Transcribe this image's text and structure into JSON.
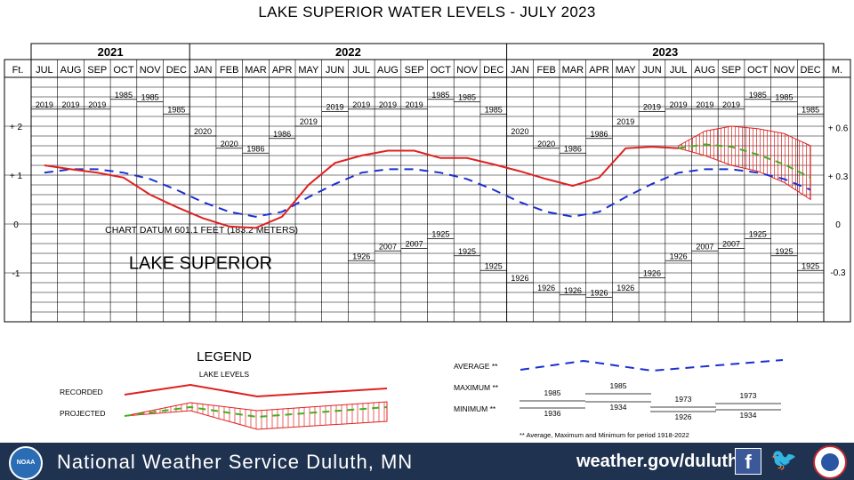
{
  "page": {
    "title": "LAKE SUPERIOR WATER LEVELS - JULY 2023"
  },
  "footer": {
    "org": "National Weather Service Duluth, MN",
    "url": "weather.gov/duluth",
    "noaa_logo_text": "NOAA",
    "facebook_icon": "facebook-icon",
    "twitter_icon": "twitter-icon",
    "background": "#1f3250"
  },
  "colors": {
    "recorded": "#e02020",
    "average": "#1a2fd0",
    "projected": "#40b020",
    "hatch": "#e02020",
    "grid": "#000000"
  },
  "chart_data": {
    "type": "line",
    "title": "LAKE SUPERIOR WATER LEVELS - JULY 2023",
    "years": [
      {
        "label": "2021",
        "start": 0,
        "end": 6
      },
      {
        "label": "2022",
        "start": 6,
        "end": 18
      },
      {
        "label": "2023",
        "start": 18,
        "end": 30
      }
    ],
    "months": [
      "JUL",
      "AUG",
      "SEP",
      "OCT",
      "NOV",
      "DEC",
      "JAN",
      "FEB",
      "MAR",
      "APR",
      "MAY",
      "JUN",
      "JUL",
      "AUG",
      "SEP",
      "OCT",
      "NOV",
      "DEC",
      "JAN",
      "FEB",
      "MAR",
      "APR",
      "MAY",
      "JUN",
      "JUL",
      "AUG",
      "SEP",
      "OCT",
      "NOV",
      "DEC"
    ],
    "left_axis_label": "Ft.",
    "right_axis_label": "M.",
    "left_ticks": [
      {
        "v": 2,
        "label": "+ 2"
      },
      {
        "v": 1,
        "label": "+ 1"
      },
      {
        "v": 0,
        "label": "0"
      },
      {
        "v": -1,
        "label": "-1"
      }
    ],
    "right_ticks": [
      {
        "v": 1.97,
        "label": "+ 0.6"
      },
      {
        "v": 0.98,
        "label": "+ 0.3"
      },
      {
        "v": 0,
        "label": "0"
      },
      {
        "v": -0.98,
        "label": "-0.3"
      }
    ],
    "ylim": [
      -2,
      3
    ],
    "datum_text": "CHART DATUM  601.1 FEET (183.2 METERS)",
    "lake_name": "LAKE SUPERIOR",
    "recorded": [
      {
        "x": 0,
        "y": 1.2
      },
      {
        "x": 1,
        "y": 1.12
      },
      {
        "x": 2,
        "y": 1.05
      },
      {
        "x": 3,
        "y": 0.95
      },
      {
        "x": 4,
        "y": 0.6
      },
      {
        "x": 5,
        "y": 0.35
      },
      {
        "x": 6,
        "y": 0.12
      },
      {
        "x": 7,
        "y": -0.05
      },
      {
        "x": 8,
        "y": -0.08
      },
      {
        "x": 9,
        "y": 0.15
      },
      {
        "x": 10,
        "y": 0.8
      },
      {
        "x": 11,
        "y": 1.25
      },
      {
        "x": 12,
        "y": 1.4
      },
      {
        "x": 13,
        "y": 1.5
      },
      {
        "x": 14,
        "y": 1.5
      },
      {
        "x": 15,
        "y": 1.35
      },
      {
        "x": 16,
        "y": 1.35
      },
      {
        "x": 17,
        "y": 1.22
      },
      {
        "x": 18,
        "y": 1.08
      },
      {
        "x": 19,
        "y": 0.92
      },
      {
        "x": 20,
        "y": 0.78
      },
      {
        "x": 21,
        "y": 0.95
      },
      {
        "x": 22,
        "y": 1.55
      },
      {
        "x": 23,
        "y": 1.58
      },
      {
        "x": 24,
        "y": 1.55
      }
    ],
    "average": [
      {
        "x": 0,
        "y": 1.05
      },
      {
        "x": 1,
        "y": 1.12
      },
      {
        "x": 2,
        "y": 1.12
      },
      {
        "x": 3,
        "y": 1.05
      },
      {
        "x": 4,
        "y": 0.92
      },
      {
        "x": 5,
        "y": 0.7
      },
      {
        "x": 6,
        "y": 0.45
      },
      {
        "x": 7,
        "y": 0.25
      },
      {
        "x": 8,
        "y": 0.15
      },
      {
        "x": 9,
        "y": 0.25
      },
      {
        "x": 10,
        "y": 0.55
      },
      {
        "x": 11,
        "y": 0.82
      },
      {
        "x": 12,
        "y": 1.05
      },
      {
        "x": 13,
        "y": 1.12
      },
      {
        "x": 14,
        "y": 1.12
      },
      {
        "x": 15,
        "y": 1.05
      },
      {
        "x": 16,
        "y": 0.92
      },
      {
        "x": 17,
        "y": 0.7
      },
      {
        "x": 18,
        "y": 0.45
      },
      {
        "x": 19,
        "y": 0.25
      },
      {
        "x": 20,
        "y": 0.15
      },
      {
        "x": 21,
        "y": 0.25
      },
      {
        "x": 22,
        "y": 0.55
      },
      {
        "x": 23,
        "y": 0.82
      },
      {
        "x": 24,
        "y": 1.05
      },
      {
        "x": 25,
        "y": 1.12
      },
      {
        "x": 26,
        "y": 1.12
      },
      {
        "x": 27,
        "y": 1.05
      },
      {
        "x": 28,
        "y": 0.92
      },
      {
        "x": 29,
        "y": 0.7
      }
    ],
    "projected": [
      {
        "x": 24,
        "y": 1.55
      },
      {
        "x": 25,
        "y": 1.63
      },
      {
        "x": 26,
        "y": 1.58
      },
      {
        "x": 27,
        "y": 1.42
      },
      {
        "x": 28,
        "y": 1.22
      },
      {
        "x": 29,
        "y": 0.95
      }
    ],
    "projected_upper": [
      {
        "x": 24,
        "y": 1.6
      },
      {
        "x": 25,
        "y": 1.9
      },
      {
        "x": 26,
        "y": 2.0
      },
      {
        "x": 27,
        "y": 1.95
      },
      {
        "x": 28,
        "y": 1.85
      },
      {
        "x": 29,
        "y": 1.6
      }
    ],
    "projected_lower": [
      {
        "x": 24,
        "y": 1.55
      },
      {
        "x": 25,
        "y": 1.4
      },
      {
        "x": 26,
        "y": 1.2
      },
      {
        "x": 27,
        "y": 1.08
      },
      {
        "x": 28,
        "y": 0.85
      },
      {
        "x": 29,
        "y": 0.5
      }
    ],
    "maximum": [
      {
        "x": 0,
        "label": "2019",
        "y": 2.35
      },
      {
        "x": 1,
        "label": "2019",
        "y": 2.35
      },
      {
        "x": 2,
        "label": "2019",
        "y": 2.35
      },
      {
        "x": 3,
        "label": "1985",
        "y": 2.55
      },
      {
        "x": 4,
        "label": "1985",
        "y": 2.5
      },
      {
        "x": 5,
        "label": "1985",
        "y": 2.25
      },
      {
        "x": 6,
        "label": "2020",
        "y": 1.8
      },
      {
        "x": 7,
        "label": "2020",
        "y": 1.55
      },
      {
        "x": 8,
        "label": "1986",
        "y": 1.45
      },
      {
        "x": 9,
        "label": "1986",
        "y": 1.75
      },
      {
        "x": 10,
        "label": "2019",
        "y": 2.0
      },
      {
        "x": 11,
        "label": "2019",
        "y": 2.3
      },
      {
        "x": 12,
        "label": "2019",
        "y": 2.35
      },
      {
        "x": 13,
        "label": "2019",
        "y": 2.35
      },
      {
        "x": 14,
        "label": "2019",
        "y": 2.35
      },
      {
        "x": 15,
        "label": "1985",
        "y": 2.55
      },
      {
        "x": 16,
        "label": "1985",
        "y": 2.5
      },
      {
        "x": 17,
        "label": "1985",
        "y": 2.25
      },
      {
        "x": 18,
        "label": "2020",
        "y": 1.8
      },
      {
        "x": 19,
        "label": "2020",
        "y": 1.55
      },
      {
        "x": 20,
        "label": "1986",
        "y": 1.45
      },
      {
        "x": 21,
        "label": "1986",
        "y": 1.75
      },
      {
        "x": 22,
        "label": "2019",
        "y": 2.0
      },
      {
        "x": 23,
        "label": "2019",
        "y": 2.3
      },
      {
        "x": 24,
        "label": "2019",
        "y": 2.35
      },
      {
        "x": 25,
        "label": "2019",
        "y": 2.35
      },
      {
        "x": 26,
        "label": "2019",
        "y": 2.35
      },
      {
        "x": 27,
        "label": "1985",
        "y": 2.55
      },
      {
        "x": 28,
        "label": "1985",
        "y": 2.5
      },
      {
        "x": 29,
        "label": "1985",
        "y": 2.25
      }
    ],
    "minimum": [
      {
        "x": 12,
        "label": "1926",
        "y": -0.75
      },
      {
        "x": 13,
        "label": "2007",
        "y": -0.55
      },
      {
        "x": 14,
        "label": "2007",
        "y": -0.5
      },
      {
        "x": 15,
        "label": "1925",
        "y": -0.3
      },
      {
        "x": 16,
        "label": "1925",
        "y": -0.65
      },
      {
        "x": 17,
        "label": "1925",
        "y": -0.95
      },
      {
        "x": 18,
        "label": "1926",
        "y": -1.2
      },
      {
        "x": 19,
        "label": "1926",
        "y": -1.4
      },
      {
        "x": 20,
        "label": "1926",
        "y": -1.45
      },
      {
        "x": 21,
        "label": "1926",
        "y": -1.5
      },
      {
        "x": 22,
        "label": "1926",
        "y": -1.4
      },
      {
        "x": 23,
        "label": "1926",
        "y": -1.1
      },
      {
        "x": 24,
        "label": "1926",
        "y": -0.75
      },
      {
        "x": 25,
        "label": "2007",
        "y": -0.55
      },
      {
        "x": 26,
        "label": "2007",
        "y": -0.5
      },
      {
        "x": 27,
        "label": "1925",
        "y": -0.3
      },
      {
        "x": 28,
        "label": "1925",
        "y": -0.65
      },
      {
        "x": 29,
        "label": "1925",
        "y": -0.95
      }
    ],
    "legend": {
      "title": "LEGEND",
      "subtitle": "LAKE LEVELS",
      "recorded_label": "RECORDED",
      "projected_label": "PROJECTED",
      "average_label": "AVERAGE **",
      "maximum_label": "MAXIMUM **",
      "minimum_label": "MINIMUM **",
      "max_years": [
        "1985",
        "1985",
        "1973",
        "1973"
      ],
      "min_years": [
        "1936",
        "1934",
        "1926",
        "1934"
      ],
      "footnote": "** Average, Maximum and Minimum for period 1918-2022"
    }
  }
}
